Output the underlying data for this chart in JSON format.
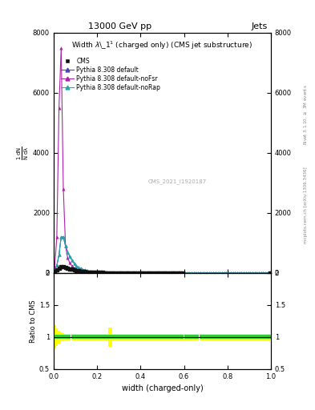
{
  "title_top": "13000 GeV pp",
  "title_right": "Jets",
  "plot_title": "Width $\\lambda$\\_1$^1$ (charged only) (CMS jet substructure)",
  "xlabel": "width (charged-only)",
  "ylabel_parts": [
    "$\\frac{1}{N}$",
    "$\\frac{dN}{d\\lambda}$"
  ],
  "right_label1": "Rivet 3.1.10, $\\geq$ 3M events",
  "right_label2": "mcplots.cern.ch [arXiv:1306.3436]",
  "watermark": "CMS_2021_I1920187",
  "legend_entries": [
    "CMS",
    "Pythia 8.308 default",
    "Pythia 8.308 default-noFsr",
    "Pythia 8.308 default-noRap"
  ],
  "xlim": [
    0.0,
    1.0
  ],
  "ylim_main": [
    0,
    8000
  ],
  "ylim_ratio": [
    0.5,
    2.0
  ],
  "yticks_main": [
    0,
    2000,
    4000,
    6000,
    8000
  ],
  "ytick_labels_main": [
    "0",
    "2000",
    "4000",
    "6000",
    "8000"
  ],
  "yticks_ratio": [
    0.5,
    1.0,
    1.5,
    2.0
  ],
  "ytick_labels_ratio": [
    "0.5",
    "1",
    "1.5",
    "2"
  ],
  "x_data": [
    0.005,
    0.015,
    0.025,
    0.035,
    0.045,
    0.055,
    0.065,
    0.075,
    0.085,
    0.095,
    0.105,
    0.115,
    0.125,
    0.135,
    0.145,
    0.155,
    0.165,
    0.175,
    0.185,
    0.195,
    0.205,
    0.215,
    0.225,
    0.235,
    0.245,
    0.255,
    0.265,
    0.275,
    0.285,
    0.295,
    0.305,
    0.315,
    0.325,
    0.335,
    0.345,
    0.355,
    0.365,
    0.375,
    0.385,
    0.395,
    0.405,
    0.415,
    0.425,
    0.435,
    0.445,
    0.455,
    0.465,
    0.475,
    0.485,
    0.495,
    0.505,
    0.515,
    0.525,
    0.535,
    0.545,
    0.555,
    0.565,
    0.575,
    0.585,
    0.595,
    0.605,
    0.615,
    0.625,
    0.635,
    0.645,
    0.655,
    0.665,
    0.675,
    0.685,
    0.695,
    0.705,
    0.715,
    0.725,
    0.735,
    0.745,
    0.755,
    0.765,
    0.775,
    0.785,
    0.795,
    0.805,
    0.815,
    0.825,
    0.835,
    0.845,
    0.855,
    0.865,
    0.875,
    0.885,
    0.895,
    0.905,
    0.915,
    0.925,
    0.935,
    0.945,
    0.955,
    0.965,
    0.975,
    0.985,
    0.995
  ],
  "cms_y": [
    50,
    100,
    150,
    200,
    200,
    180,
    160,
    140,
    120,
    100,
    85,
    70,
    58,
    48,
    40,
    33,
    28,
    23,
    19,
    16,
    14,
    12,
    10,
    9,
    8,
    7,
    6,
    5,
    5,
    4,
    4,
    3,
    3,
    3,
    2,
    2,
    2,
    2,
    2,
    2,
    1,
    1,
    1,
    1,
    1,
    1,
    1,
    1,
    1,
    1,
    1,
    1,
    1,
    1,
    1,
    1,
    1,
    1,
    1,
    1,
    0,
    0,
    0,
    0,
    0,
    0,
    0,
    0,
    0,
    0,
    0,
    0,
    0,
    0,
    0,
    0,
    0,
    0,
    0,
    0,
    0,
    0,
    0,
    0,
    0,
    0,
    0,
    0,
    0,
    0,
    0,
    0,
    0,
    0,
    0,
    0,
    0,
    0,
    0,
    5
  ],
  "pythia_default_y": [
    100,
    250,
    600,
    1200,
    1200,
    900,
    700,
    550,
    420,
    320,
    240,
    185,
    145,
    115,
    92,
    74,
    60,
    49,
    40,
    33,
    27,
    22,
    18,
    15,
    13,
    11,
    9,
    8,
    7,
    6,
    5,
    4,
    4,
    3,
    3,
    3,
    2,
    2,
    2,
    2,
    2,
    1,
    1,
    1,
    1,
    1,
    1,
    1,
    1,
    1,
    1,
    1,
    1,
    1,
    1,
    1,
    1,
    1,
    1,
    1,
    0,
    0,
    0,
    0,
    0,
    0,
    0,
    0,
    0,
    0,
    0,
    0,
    0,
    0,
    0,
    0,
    0,
    0,
    0,
    0,
    0,
    0,
    0,
    0,
    0,
    0,
    0,
    0,
    0,
    0,
    0,
    0,
    0,
    0,
    0,
    0,
    0,
    0,
    0,
    3
  ],
  "pythia_noFsr_y": [
    200,
    1200,
    5500,
    7500,
    2800,
    900,
    500,
    330,
    230,
    165,
    120,
    90,
    70,
    55,
    43,
    34,
    27,
    22,
    18,
    15,
    12,
    10,
    8,
    7,
    6,
    5,
    4,
    4,
    3,
    3,
    2,
    2,
    2,
    2,
    1,
    1,
    1,
    1,
    1,
    1,
    1,
    1,
    1,
    1,
    1,
    0,
    0,
    0,
    0,
    0,
    0,
    0,
    0,
    0,
    0,
    0,
    0,
    0,
    0,
    0,
    0,
    0,
    0,
    0,
    0,
    0,
    0,
    0,
    0,
    0,
    0,
    0,
    0,
    0,
    0,
    0,
    0,
    0,
    0,
    0,
    0,
    0,
    0,
    0,
    0,
    0,
    0,
    0,
    0,
    0,
    0,
    0,
    0,
    0,
    0,
    0,
    0,
    0,
    0,
    2
  ],
  "pythia_noRap_y": [
    100,
    250,
    600,
    1200,
    1200,
    900,
    700,
    550,
    420,
    320,
    240,
    185,
    145,
    115,
    92,
    74,
    60,
    49,
    40,
    33,
    27,
    22,
    18,
    15,
    13,
    11,
    9,
    8,
    7,
    6,
    5,
    4,
    4,
    3,
    3,
    3,
    2,
    2,
    2,
    2,
    2,
    1,
    1,
    1,
    1,
    1,
    1,
    1,
    1,
    1,
    1,
    1,
    1,
    1,
    1,
    1,
    1,
    1,
    1,
    1,
    0,
    0,
    0,
    0,
    0,
    0,
    0,
    0,
    0,
    0,
    0,
    0,
    0,
    0,
    0,
    0,
    0,
    0,
    0,
    0,
    0,
    0,
    0,
    0,
    0,
    0,
    0,
    0,
    0,
    0,
    0,
    0,
    0,
    0,
    0,
    0,
    0,
    0,
    0,
    3
  ],
  "color_default": "#4444bb",
  "color_noFsr": "#aa22aa",
  "color_noRap": "#22aaaa",
  "color_cms": "#111111",
  "ratio_green_band_y": [
    1.0,
    1.0,
    1.0,
    1.0,
    1.0,
    1.0,
    1.0,
    1.0,
    1.0,
    1.0,
    1.0,
    1.0,
    1.0,
    1.0,
    1.0,
    1.0,
    1.0,
    1.0,
    1.0,
    1.0,
    1.0,
    1.0,
    1.0,
    1.0,
    1.0,
    1.0,
    1.0,
    1.0,
    1.0,
    1.0,
    1.0,
    1.0,
    1.0,
    1.0,
    1.0,
    1.0,
    1.0,
    1.0,
    1.0,
    1.0,
    1.0,
    1.0,
    1.0,
    1.0,
    1.0,
    1.0,
    1.0,
    1.0,
    1.0,
    1.0,
    1.0,
    1.0,
    1.0,
    1.0,
    1.0,
    1.0,
    1.0,
    1.0,
    1.0,
    1.0,
    1.0,
    1.0,
    1.0,
    1.0,
    1.0,
    1.0,
    1.0,
    1.0,
    1.0,
    1.0,
    1.0,
    1.0,
    1.0,
    1.0,
    1.0,
    1.0,
    1.0,
    1.0,
    1.0,
    1.0,
    1.0,
    1.0,
    1.0,
    1.0,
    1.0,
    1.0,
    1.0,
    1.0,
    1.0,
    1.0,
    1.0,
    1.0,
    1.0,
    1.0,
    1.0,
    1.0,
    1.0,
    1.0,
    1.0,
    1.0
  ],
  "ratio_green_err": [
    0.03,
    0.03,
    0.03,
    0.03,
    0.03,
    0.03,
    0.03,
    0.03,
    0.03,
    0.03,
    0.03,
    0.03,
    0.03,
    0.03,
    0.03,
    0.03,
    0.03,
    0.03,
    0.03,
    0.03,
    0.03,
    0.03,
    0.03,
    0.03,
    0.03,
    0.03,
    0.03,
    0.03,
    0.03,
    0.03,
    0.03,
    0.03,
    0.03,
    0.03,
    0.03,
    0.03,
    0.03,
    0.03,
    0.03,
    0.03,
    0.03,
    0.03,
    0.03,
    0.03,
    0.03,
    0.03,
    0.03,
    0.03,
    0.03,
    0.03,
    0.03,
    0.03,
    0.03,
    0.03,
    0.03,
    0.03,
    0.03,
    0.03,
    0.03,
    0.03,
    0.03,
    0.03,
    0.03,
    0.03,
    0.03,
    0.03,
    0.03,
    0.03,
    0.03,
    0.03,
    0.03,
    0.03,
    0.03,
    0.03,
    0.03,
    0.03,
    0.03,
    0.03,
    0.03,
    0.03,
    0.03,
    0.03,
    0.03,
    0.03,
    0.03,
    0.03,
    0.03,
    0.03,
    0.03,
    0.03,
    0.03,
    0.03,
    0.03,
    0.03,
    0.03,
    0.03,
    0.03,
    0.03,
    0.03,
    0.03
  ],
  "ratio_yellow_err": [
    0.18,
    0.14,
    0.1,
    0.07,
    0.06,
    0.05,
    0.05,
    0.05,
    0.05,
    0.05,
    0.05,
    0.05,
    0.05,
    0.05,
    0.05,
    0.05,
    0.05,
    0.05,
    0.05,
    0.05,
    0.05,
    0.05,
    0.05,
    0.05,
    0.05,
    0.15,
    0.15,
    0.05,
    0.05,
    0.05,
    0.05,
    0.05,
    0.05,
    0.05,
    0.05,
    0.05,
    0.05,
    0.05,
    0.05,
    0.05,
    0.05,
    0.05,
    0.05,
    0.05,
    0.05,
    0.05,
    0.05,
    0.05,
    0.05,
    0.05,
    0.05,
    0.05,
    0.05,
    0.05,
    0.05,
    0.05,
    0.05,
    0.05,
    0.05,
    0.05,
    0.05,
    0.05,
    0.05,
    0.05,
    0.05,
    0.05,
    0.05,
    0.05,
    0.05,
    0.05,
    0.05,
    0.05,
    0.05,
    0.05,
    0.05,
    0.05,
    0.05,
    0.05,
    0.05,
    0.05,
    0.05,
    0.05,
    0.05,
    0.05,
    0.05,
    0.05,
    0.05,
    0.05,
    0.05,
    0.05,
    0.05,
    0.05,
    0.05,
    0.05,
    0.05,
    0.05,
    0.05,
    0.05,
    0.05,
    0.05
  ]
}
